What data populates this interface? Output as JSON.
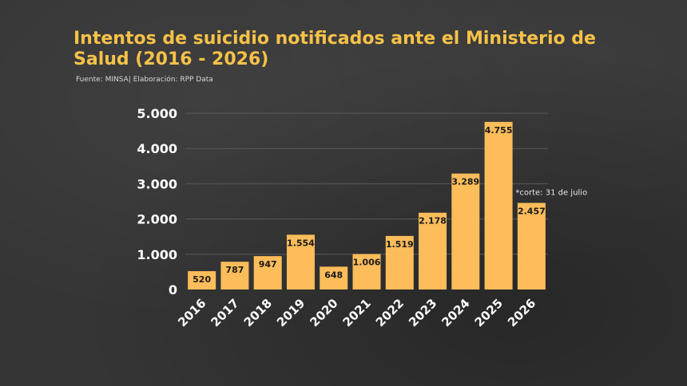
{
  "title": "Intentos de suicidio notificados ante el Ministerio de Salud (2016 - 2026)",
  "source": "Fuente: MINSA| Elaboración: RPP Data",
  "colors": {
    "bar": "#fcbd5a",
    "title": "#f6c248",
    "background": "#353535",
    "grid": "#5a5a5a"
  },
  "chart_data": {
    "type": "bar",
    "title": "Intentos de suicidio notificados ante el Ministerio de Salud (2016 - 2026)",
    "xlabel": "",
    "ylabel": "",
    "ylim": [
      0,
      5000
    ],
    "yticks": [
      0,
      1000,
      2000,
      3000,
      4000,
      5000
    ],
    "ytick_labels": [
      "0",
      "1.000",
      "2.000",
      "3.000",
      "4.000",
      "5.000"
    ],
    "grid": true,
    "categories": [
      "2016",
      "2017",
      "2018",
      "2019",
      "2020",
      "2021",
      "2022",
      "2023",
      "2024",
      "2025",
      "2026"
    ],
    "values": [
      520,
      787,
      947,
      1554,
      648,
      1006,
      1519,
      2178,
      3289,
      4755,
      2457
    ],
    "value_labels": [
      "520",
      "787",
      "947",
      "1.554",
      "648",
      "1.006",
      "1.519",
      "2.178",
      "3.289",
      "4.755",
      "2.457"
    ],
    "annotations": [
      {
        "category": "2026",
        "text": "*corte: 31 de julio"
      }
    ]
  }
}
